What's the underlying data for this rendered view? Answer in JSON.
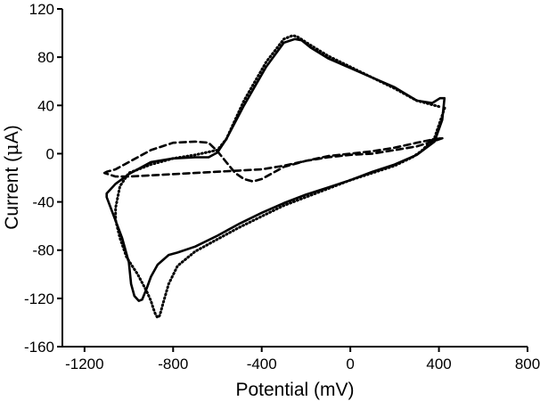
{
  "chart_data": {
    "type": "line",
    "title": "",
    "xlabel": "Potential (mV)",
    "ylabel_prefix": "Current (",
    "ylabel_mu": "μ",
    "ylabel_suffix": "A)",
    "xlim": [
      -1300,
      800
    ],
    "ylim": [
      -160,
      120
    ],
    "xticks": [
      -1200,
      -800,
      -400,
      0,
      400,
      800
    ],
    "xtick_labels": [
      "-1200",
      "-800",
      "-400",
      "0",
      "400",
      "800"
    ],
    "yticks": [
      -160,
      -120,
      -80,
      -40,
      0,
      40,
      80,
      120
    ],
    "ytick_labels": [
      "-160",
      "-120",
      "-80",
      "-40",
      "0",
      "40",
      "80",
      "120"
    ],
    "grid": false,
    "legend": "none",
    "series": [
      {
        "name": "solid",
        "style": "solid",
        "color": "#000000",
        "x": [
          425,
          405,
          370,
          300,
          200,
          100,
          0,
          -100,
          -180,
          -220,
          -250,
          -300,
          -380,
          -480,
          -560,
          -600,
          -640,
          -700,
          -800,
          -900,
          -1000,
          -1060,
          -1100,
          -1100,
          -1030,
          -1000,
          -990,
          -975,
          -955,
          -940,
          -920,
          -900,
          -870,
          -820,
          -780,
          -700,
          -600,
          -500,
          -400,
          -300,
          -200,
          -100,
          0,
          100,
          200,
          300,
          380,
          415,
          425
        ],
        "y": [
          46,
          46,
          42,
          44,
          55,
          63,
          71,
          79,
          88,
          94,
          95,
          92,
          72,
          40,
          12,
          1,
          -3,
          -3,
          -4,
          -7,
          -17,
          -25,
          -33,
          -36,
          -70,
          -90,
          -108,
          -118,
          -122,
          -121,
          -112,
          -102,
          -92,
          -84,
          -82,
          -77,
          -68,
          -58,
          -49,
          -41,
          -34,
          -28,
          -22,
          -15,
          -9,
          -1,
          10,
          28,
          46
        ]
      },
      {
        "name": "dotted",
        "style": "dotted",
        "color": "#000000",
        "x": [
          400,
          300,
          200,
          100,
          0,
          -100,
          -180,
          -240,
          -260,
          -300,
          -380,
          -480,
          -560,
          -600,
          -700,
          -800,
          -900,
          -1000,
          -1040,
          -1060,
          -1060,
          -1040,
          -1010,
          -960,
          -920,
          -900,
          -890,
          -880,
          -870,
          -860,
          -850,
          -820,
          -780,
          -700,
          -600,
          -500,
          -400,
          -300,
          -200,
          -100,
          0,
          100,
          200,
          280,
          320,
          380,
          430
        ],
        "y": [
          39,
          44,
          54,
          63,
          72,
          81,
          90,
          97,
          98,
          95,
          76,
          44,
          12,
          3,
          -1,
          -4,
          -9,
          -16,
          -27,
          -45,
          -55,
          -70,
          -86,
          -100,
          -114,
          -122,
          -128,
          -133,
          -136,
          -134,
          -127,
          -108,
          -93,
          -81,
          -71,
          -61,
          -52,
          -43,
          -36,
          -29,
          -22,
          -16,
          -10,
          -3,
          2,
          13,
          40
        ]
      },
      {
        "name": "dashed",
        "style": "dashed",
        "color": "#000000",
        "x": [
          -1110,
          -1100,
          -1080,
          -1060,
          -1050,
          -1040,
          -1020,
          -980,
          -900,
          -800,
          -700,
          -640,
          -600,
          -560,
          -520,
          -480,
          -440,
          -400,
          -300,
          -200,
          -100,
          0,
          100,
          200,
          300,
          380,
          420,
          370,
          300,
          200,
          100,
          0,
          -100,
          -200,
          -300,
          -400,
          -500,
          -600,
          -700,
          -800,
          -900,
          -1000,
          -1060,
          -1110
        ],
        "y": [
          -16,
          -15,
          -14,
          -13,
          -12,
          -11,
          -9,
          -5,
          3,
          9,
          10,
          9,
          2,
          -7,
          -16,
          -21,
          -23,
          -21,
          -11,
          -6,
          -2,
          0,
          2,
          5,
          9,
          12,
          13,
          10,
          6,
          3,
          0,
          -1,
          -3,
          -6,
          -10,
          -13,
          -14,
          -15,
          -16,
          -17,
          -18,
          -19,
          -19,
          -16
        ]
      }
    ]
  }
}
